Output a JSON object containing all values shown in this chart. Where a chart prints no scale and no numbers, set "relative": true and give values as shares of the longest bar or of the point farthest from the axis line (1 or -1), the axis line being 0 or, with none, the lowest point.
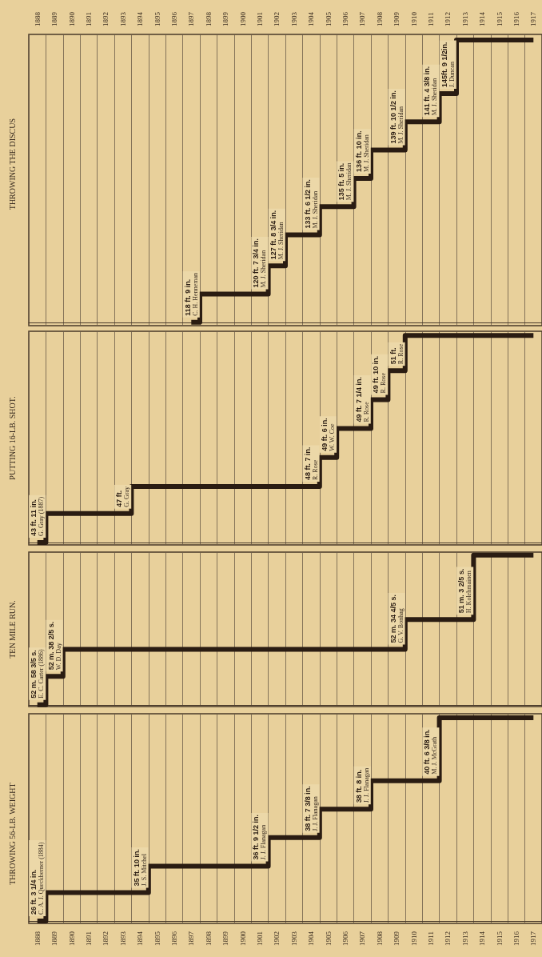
{
  "chart_data": [
    {
      "type": "step",
      "title": "THROWING THE DISCUS",
      "categories": [
        "1888",
        "1889",
        "1890",
        "1891",
        "1892",
        "1893",
        "1894",
        "1895",
        "1896",
        "1897",
        "1898",
        "1899",
        "1900",
        "1901",
        "1902",
        "1903",
        "1904",
        "1905",
        "1906",
        "1907",
        "1908",
        "1909",
        "1910",
        "1911",
        "1912",
        "1913",
        "1914",
        "1915",
        "1916",
        "1917"
      ],
      "relative": true,
      "color": "#2a1c12",
      "grid": "x",
      "tick_labels": "x",
      "values": [
        null,
        null,
        null,
        null,
        null,
        null,
        null,
        null,
        null,
        0,
        0.1,
        0.1,
        0.1,
        0.1,
        0.2,
        0.31,
        0.31,
        0.41,
        0.41,
        0.51,
        0.61,
        0.61,
        0.71,
        0.71,
        0.81,
        1,
        1,
        1,
        1,
        1
      ],
      "annotations": [
        {
          "text": "118 ft. 9 in.\nC. H. Henneman",
          "x": "1897",
          "y": 0
        },
        {
          "text": "120 ft. 7 3/4 in.\nM. J. Sheridan",
          "x": "1901",
          "y": 0.1
        },
        {
          "text": "127 ft. 8 3/4 in.\nM. J. Sheridan",
          "x": "1902",
          "y": 0.2
        },
        {
          "text": "133 ft. 6 1/2 in.\nM. J. Sheridan",
          "x": "1904",
          "y": 0.31
        },
        {
          "text": "135 ft. 5 in.\nM. J. Sheridan",
          "x": "1906",
          "y": 0.41
        },
        {
          "text": "136 ft. 10 in.\nM. J. Sheridan",
          "x": "1907",
          "y": 0.51
        },
        {
          "text": "139 ft. 10 1/2 in.\nM. J. Sheridan",
          "x": "1909",
          "y": 0.61
        },
        {
          "text": "141 ft. 4 3/8 in.\nM. J. Sheridan",
          "x": "1911",
          "y": 0.71
        },
        {
          "text": "145ft. 9 1/2in.\nJ. Duncan",
          "x": "1912",
          "y": 0.81
        }
      ]
    },
    {
      "type": "step",
      "title": "PUTTING 16-LB. SHOT.",
      "categories": [
        "1888",
        "1889",
        "1890",
        "1891",
        "1892",
        "1893",
        "1894",
        "1895",
        "1896",
        "1897",
        "1898",
        "1899",
        "1900",
        "1901",
        "1902",
        "1903",
        "1904",
        "1905",
        "1906",
        "1907",
        "1908",
        "1909",
        "1910",
        "1911",
        "1912",
        "1913",
        "1914",
        "1915",
        "1916",
        "1917"
      ],
      "relative": true,
      "color": "#2a1c12",
      "grid": "x",
      "tick_labels": false,
      "values": [
        0,
        0.14,
        0.14,
        0.14,
        0.14,
        0.14,
        0.27,
        0.27,
        0.27,
        0.27,
        0.27,
        0.27,
        0.27,
        0.27,
        0.27,
        0.27,
        0.27,
        0.41,
        0.55,
        0.55,
        0.69,
        0.83,
        1,
        1,
        1,
        1,
        1,
        1,
        1,
        1
      ],
      "annotations": [
        {
          "text": "43 ft. 11 in.\nG. Gray (1887)",
          "x": "1888",
          "y": 0
        },
        {
          "text": "47 ft.\nG. Gray",
          "x": "1893",
          "y": 0.14
        },
        {
          "text": "48 ft. 7 in.\nR. Rose",
          "x": "1904",
          "y": 0.27
        },
        {
          "text": "49 ft. 6 in.\nW. W. Coe",
          "x": "1905",
          "y": 0.41
        },
        {
          "text": "49 ft. 7 1/4 in.\nR. Rose",
          "x": "1907",
          "y": 0.55
        },
        {
          "text": "49 ft. 10 in.\nR. Rose",
          "x": "1908",
          "y": 0.69
        },
        {
          "text": "51 ft.\nR. Rose",
          "x": "1909",
          "y": 0.83
        }
      ]
    },
    {
      "type": "step",
      "title": "TEN MILE RUN.",
      "categories": [
        "1888",
        "1889",
        "1890",
        "1891",
        "1892",
        "1893",
        "1894",
        "1895",
        "1896",
        "1897",
        "1898",
        "1899",
        "1900",
        "1901",
        "1902",
        "1903",
        "1904",
        "1905",
        "1906",
        "1907",
        "1908",
        "1909",
        "1910",
        "1911",
        "1912",
        "1913",
        "1914",
        "1915",
        "1916",
        "1917"
      ],
      "relative": true,
      "color": "#2a1c12",
      "grid": "x",
      "tick_labels": false,
      "values": [
        0,
        0.19,
        0.37,
        0.37,
        0.37,
        0.37,
        0.37,
        0.37,
        0.37,
        0.37,
        0.37,
        0.37,
        0.37,
        0.37,
        0.37,
        0.37,
        0.37,
        0.37,
        0.37,
        0.37,
        0.37,
        0.37,
        0.57,
        0.57,
        0.57,
        0.57,
        1,
        1,
        1,
        1
      ],
      "annotations": [
        {
          "text": "52 m. 58 3/5 s.\nE. C. Carter (1886)",
          "x": "1888",
          "y": 0
        },
        {
          "text": "52 m. 38 2/5 s.\nW. D. Day",
          "x": "1889",
          "y": 0.19
        },
        {
          "text": "52 m. 34 4/5 s.\nG. V. Bonhag",
          "x": "1909",
          "y": 0.37
        },
        {
          "text": "51 m. 3 2/5 s.\nH. Kolehmainen",
          "x": "1913",
          "y": 0.57
        }
      ]
    },
    {
      "type": "step",
      "title": "THROWING 56-LB. WEIGHT",
      "categories": [
        "1888",
        "1889",
        "1890",
        "1891",
        "1892",
        "1893",
        "1894",
        "1895",
        "1896",
        "1897",
        "1898",
        "1899",
        "1900",
        "1901",
        "1902",
        "1903",
        "1904",
        "1905",
        "1906",
        "1907",
        "1908",
        "1909",
        "1910",
        "1911",
        "1912",
        "1913",
        "1914",
        "1915",
        "1916",
        "1917"
      ],
      "relative": true,
      "color": "#2a1c12",
      "grid": "x",
      "tick_labels": "x",
      "values": [
        0,
        0.14,
        0.14,
        0.14,
        0.14,
        0.14,
        0.14,
        0.27,
        0.27,
        0.27,
        0.27,
        0.27,
        0.27,
        0.27,
        0.41,
        0.41,
        0.41,
        0.55,
        0.55,
        0.55,
        0.69,
        0.69,
        0.69,
        0.69,
        1,
        1,
        1,
        1,
        1,
        1
      ],
      "annotations": [
        {
          "text": "26 ft. 3 1/4 in.\nC. A. J. Queckberner (1884)",
          "x": "1888",
          "y": 0
        },
        {
          "text": "35 ft. 10 in.\nJ. S. Mitchel",
          "x": "1894",
          "y": 0.14
        },
        {
          "text": "36 ft. 9 1/2 in.\nJ. J. Flanagan",
          "x": "1901",
          "y": 0.27
        },
        {
          "text": "38 ft. 7 3/8 in.\nJ. J. Flanagan",
          "x": "1904",
          "y": 0.41
        },
        {
          "text": "38 ft. 8 in.\nJ. J. Flanagan",
          "x": "1907",
          "y": 0.55
        },
        {
          "text": "40 ft. 6 3/8 in.\nM. J. McGrath",
          "x": "1911",
          "y": 0.69
        }
      ]
    }
  ]
}
